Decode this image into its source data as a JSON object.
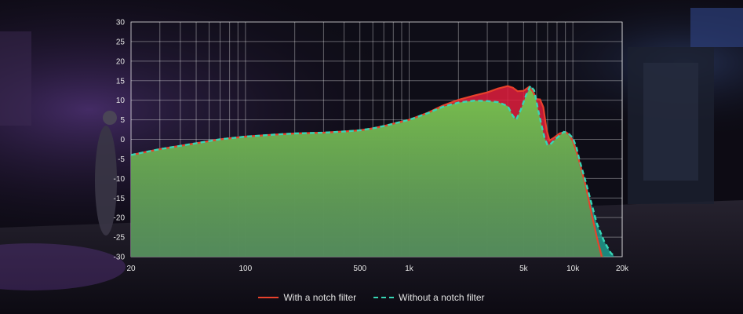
{
  "chart_data": {
    "type": "area",
    "xscale": "log",
    "xlim": [
      20,
      20000
    ],
    "ylim": [
      -30,
      30
    ],
    "grid": true,
    "legend_position": "bottom-center",
    "xticks": [
      {
        "value": 20,
        "label": "20"
      },
      {
        "value": 100,
        "label": "100"
      },
      {
        "value": 500,
        "label": "500"
      },
      {
        "value": 1000,
        "label": "1k"
      },
      {
        "value": 5000,
        "label": "5k"
      },
      {
        "value": 10000,
        "label": "10k"
      },
      {
        "value": 20000,
        "label": "20k"
      }
    ],
    "yticks": [
      30,
      25,
      20,
      15,
      10,
      5,
      0,
      -5,
      -10,
      -15,
      -20,
      -25,
      -30
    ],
    "series": [
      {
        "name": "With a notch filter",
        "color": "#e8412c",
        "fill": "#e01f3d",
        "style": "solid",
        "points": [
          [
            20,
            -4
          ],
          [
            30,
            -2.5
          ],
          [
            50,
            -1
          ],
          [
            70,
            0
          ],
          [
            100,
            0.7
          ],
          [
            150,
            1.2
          ],
          [
            200,
            1.5
          ],
          [
            300,
            1.7
          ],
          [
            400,
            2
          ],
          [
            500,
            2.3
          ],
          [
            600,
            2.8
          ],
          [
            700,
            3.4
          ],
          [
            800,
            4
          ],
          [
            1000,
            5
          ],
          [
            1300,
            6.8
          ],
          [
            1600,
            8.6
          ],
          [
            2000,
            10.1
          ],
          [
            2500,
            11.2
          ],
          [
            3000,
            12
          ],
          [
            3500,
            13
          ],
          [
            4000,
            13.6
          ],
          [
            4300,
            13.2
          ],
          [
            4600,
            12.3
          ],
          [
            5000,
            12.4
          ],
          [
            5400,
            13.4
          ],
          [
            5700,
            12.2
          ],
          [
            6000,
            10.3
          ],
          [
            6300,
            10.2
          ],
          [
            6600,
            8.2
          ],
          [
            6900,
            2.5
          ],
          [
            7200,
            -0.3
          ],
          [
            7600,
            0.3
          ],
          [
            8300,
            1.5
          ],
          [
            9000,
            1.9
          ],
          [
            9500,
            1.2
          ],
          [
            10000,
            -0.5
          ],
          [
            10500,
            -3
          ],
          [
            11000,
            -6
          ],
          [
            12000,
            -12
          ],
          [
            13000,
            -19
          ],
          [
            14000,
            -25
          ],
          [
            15000,
            -30
          ]
        ]
      },
      {
        "name": "Without a notch filter",
        "color": "#37d6b5",
        "fill": "#1fae9c",
        "style": "dashed",
        "points": [
          [
            20,
            -4
          ],
          [
            30,
            -2.5
          ],
          [
            50,
            -1
          ],
          [
            70,
            0
          ],
          [
            100,
            0.7
          ],
          [
            150,
            1.2
          ],
          [
            200,
            1.5
          ],
          [
            300,
            1.7
          ],
          [
            400,
            2
          ],
          [
            500,
            2.3
          ],
          [
            600,
            2.8
          ],
          [
            700,
            3.4
          ],
          [
            800,
            4
          ],
          [
            1000,
            5
          ],
          [
            1300,
            6.7
          ],
          [
            1600,
            8.3
          ],
          [
            2000,
            9.4
          ],
          [
            2500,
            9.9
          ],
          [
            3000,
            9.8
          ],
          [
            3500,
            9.5
          ],
          [
            4000,
            8.5
          ],
          [
            4300,
            6
          ],
          [
            4500,
            5
          ],
          [
            4800,
            7.5
          ],
          [
            5200,
            11.5
          ],
          [
            5500,
            13.7
          ],
          [
            5800,
            12.5
          ],
          [
            6100,
            8
          ],
          [
            6400,
            4
          ],
          [
            6700,
            0.5
          ],
          [
            7000,
            -1.5
          ],
          [
            7300,
            -1.2
          ],
          [
            7800,
            0
          ],
          [
            8300,
            1
          ],
          [
            8800,
            1.9
          ],
          [
            9300,
            1.7
          ],
          [
            10000,
            0.3
          ],
          [
            10500,
            -2
          ],
          [
            11000,
            -5.5
          ],
          [
            12000,
            -11
          ],
          [
            13000,
            -16.5
          ],
          [
            14000,
            -21.5
          ],
          [
            15500,
            -26
          ],
          [
            17000,
            -29
          ],
          [
            18000,
            -30
          ]
        ]
      }
    ]
  }
}
